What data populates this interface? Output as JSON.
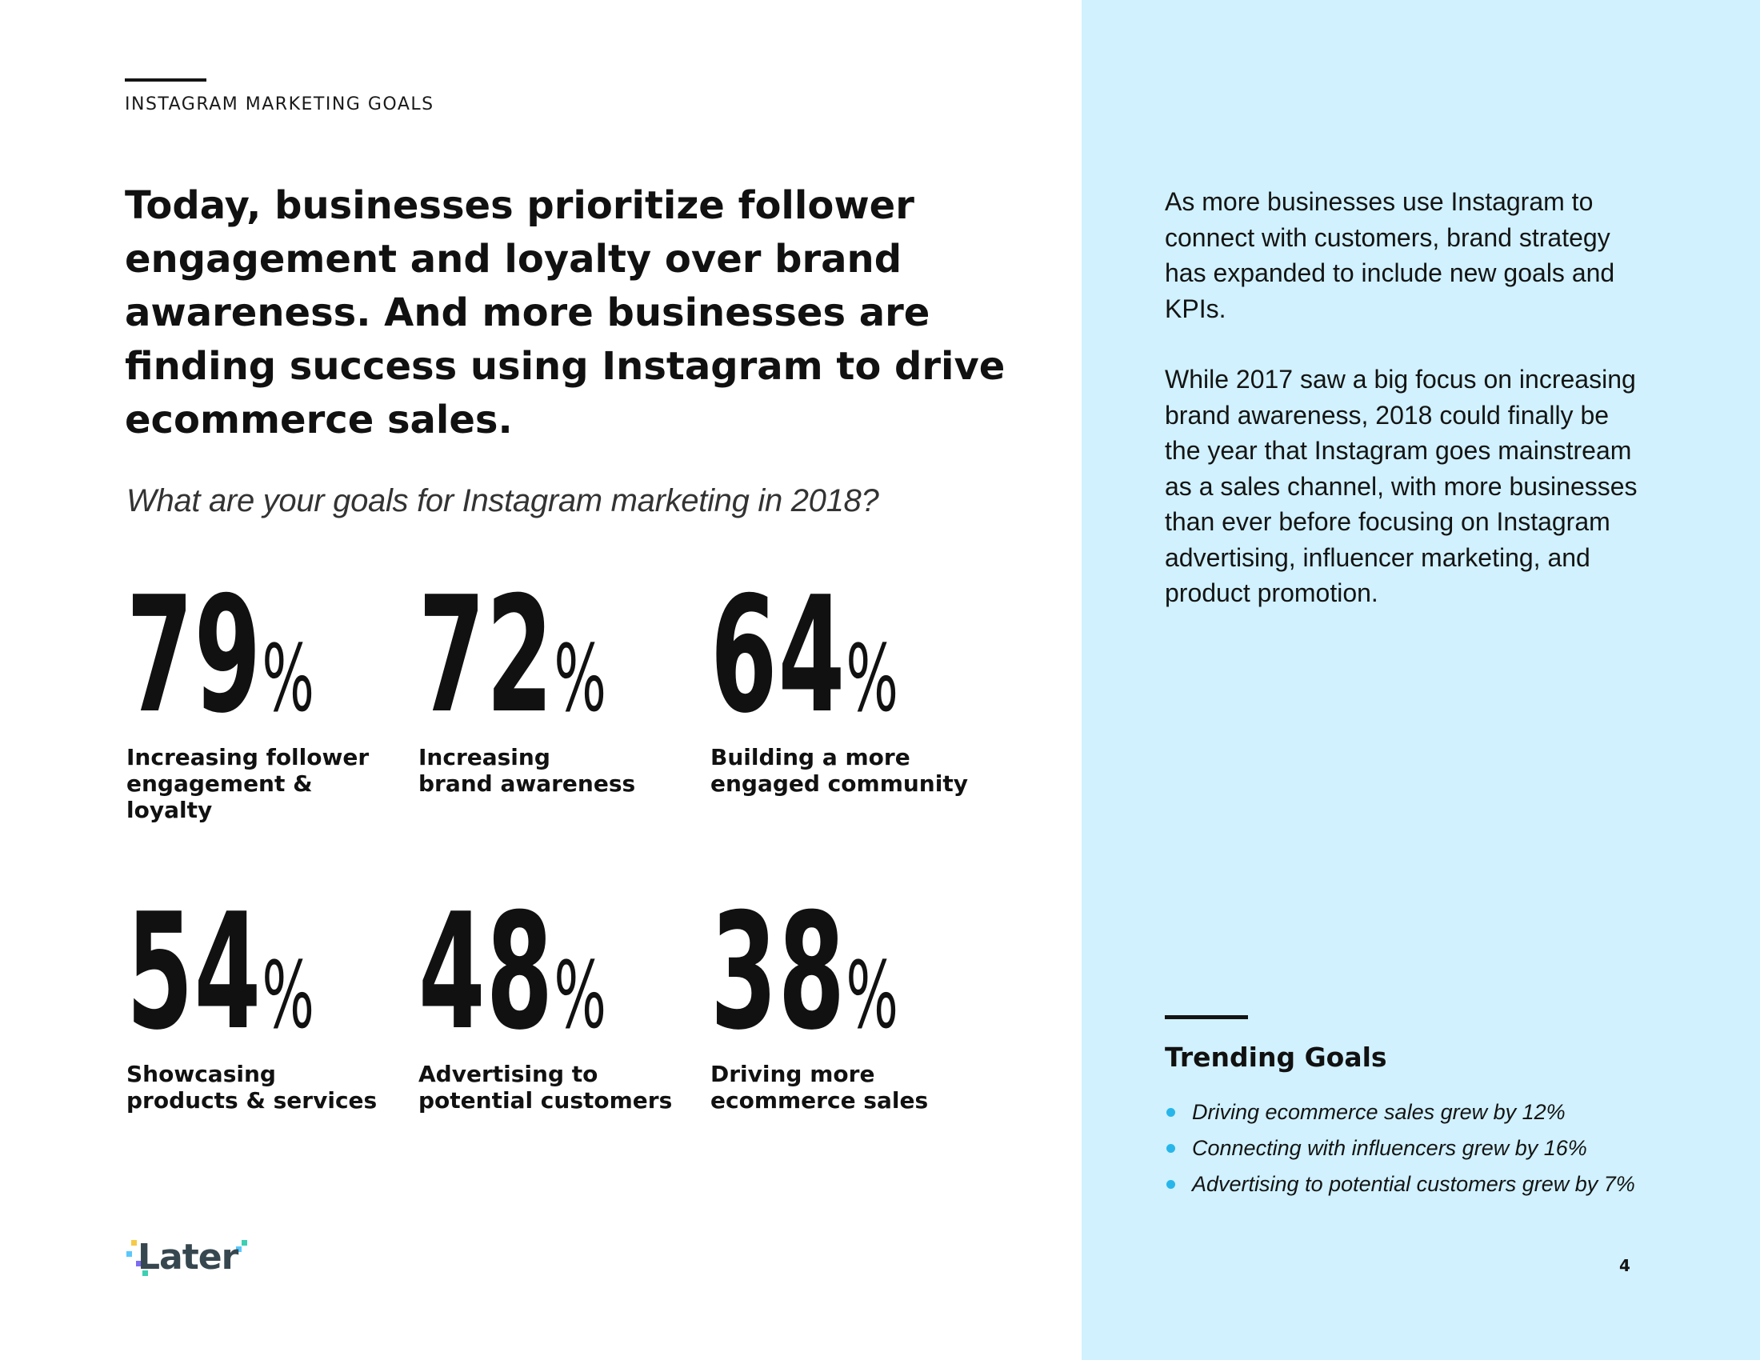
{
  "header": {
    "kicker": "INSTAGRAM MARKETING GOALS"
  },
  "headline": "Today, businesses prioritize follower engagement and loyalty over brand awareness. And more businesses are finding success using Instagram to drive ecommerce sales.",
  "question": "What are your goals for Instagram marketing in 2018?",
  "stats": [
    {
      "value": "79",
      "unit": "%",
      "label_line1": "Increasing follower",
      "label_line2": "engagement &",
      "label_line3": "loyalty"
    },
    {
      "value": "72",
      "unit": "%",
      "label_line1": "Increasing",
      "label_line2": "brand awareness",
      "label_line3": ""
    },
    {
      "value": "64",
      "unit": "%",
      "label_line1": "Building a more",
      "label_line2": "engaged community",
      "label_line3": ""
    },
    {
      "value": "54",
      "unit": "%",
      "label_line1": "Showcasing",
      "label_line2": "products & services",
      "label_line3": ""
    },
    {
      "value": "48",
      "unit": "%",
      "label_line1": "Advertising to",
      "label_line2": "potential customers",
      "label_line3": ""
    },
    {
      "value": "38",
      "unit": "%",
      "label_line1": "Driving more",
      "label_line2": "ecommerce sales",
      "label_line3": ""
    }
  ],
  "sidebar": {
    "paragraph1": "As more businesses use Instagram to connect with customers, brand strategy has expanded to include new goals and KPIs.",
    "paragraph2": "While 2017 saw a big focus on increasing brand awareness, 2018 could finally be the year that Instagram goes mainstream as a sales channel, with more businesses than ever before focusing on Instagram advertising, influencer marketing, and product promotion.",
    "trending_title": "Trending Goals",
    "trending_items": [
      "Driving ecommerce sales grew by 12%",
      "Connecting with influencers grew by 16%",
      "Advertising to potential customers grew by 7%"
    ]
  },
  "footer": {
    "logo_text": "Later",
    "page_number": "4"
  },
  "colors": {
    "sidebar_background": "#d0f1fd",
    "bullet": "#28b6ea",
    "text": "#141414"
  }
}
